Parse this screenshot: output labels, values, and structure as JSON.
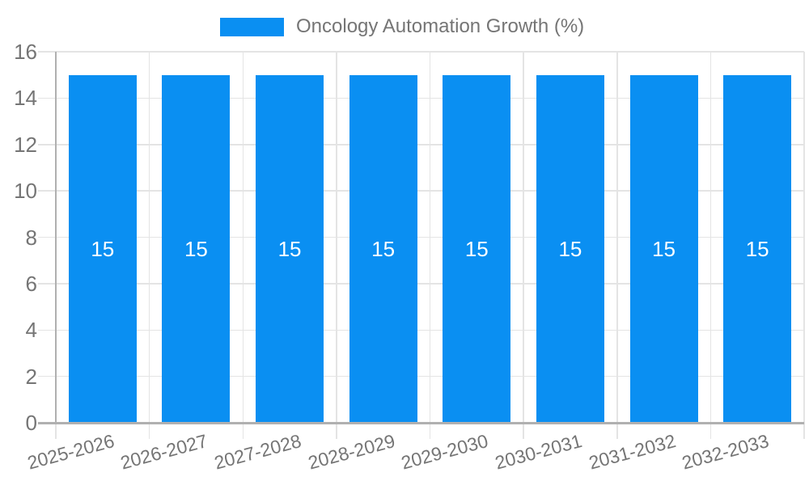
{
  "legend": {
    "label": "Oncology Automation Growth (%)"
  },
  "chart_data": {
    "type": "bar",
    "title": "",
    "categories": [
      "2025-2026",
      "2026-2027",
      "2027-2028",
      "2028-2029",
      "2029-2030",
      "2030-2031",
      "2031-2032",
      "2032-2033"
    ],
    "values": [
      15,
      15,
      15,
      15,
      15,
      15,
      15,
      15
    ],
    "bar_value_labels": [
      "15",
      "15",
      "15",
      "15",
      "15",
      "15",
      "15",
      "15"
    ],
    "legend_entries": [
      "Oncology Automation Growth (%)"
    ],
    "legend_position": "top-center",
    "xlabel": "",
    "ylabel": "",
    "ylim": [
      0,
      16
    ],
    "yticks": [
      0,
      2,
      4,
      6,
      8,
      10,
      12,
      14,
      16
    ],
    "grid": true,
    "x_label_rotation_deg": -15,
    "colors": {
      "bar": "#0a8ff2",
      "axis_text": "#757575",
      "grid": "#e4e4e4",
      "axis_line": "#b0b0b0",
      "value_label": "#ffffff",
      "background": "#ffffff"
    }
  }
}
